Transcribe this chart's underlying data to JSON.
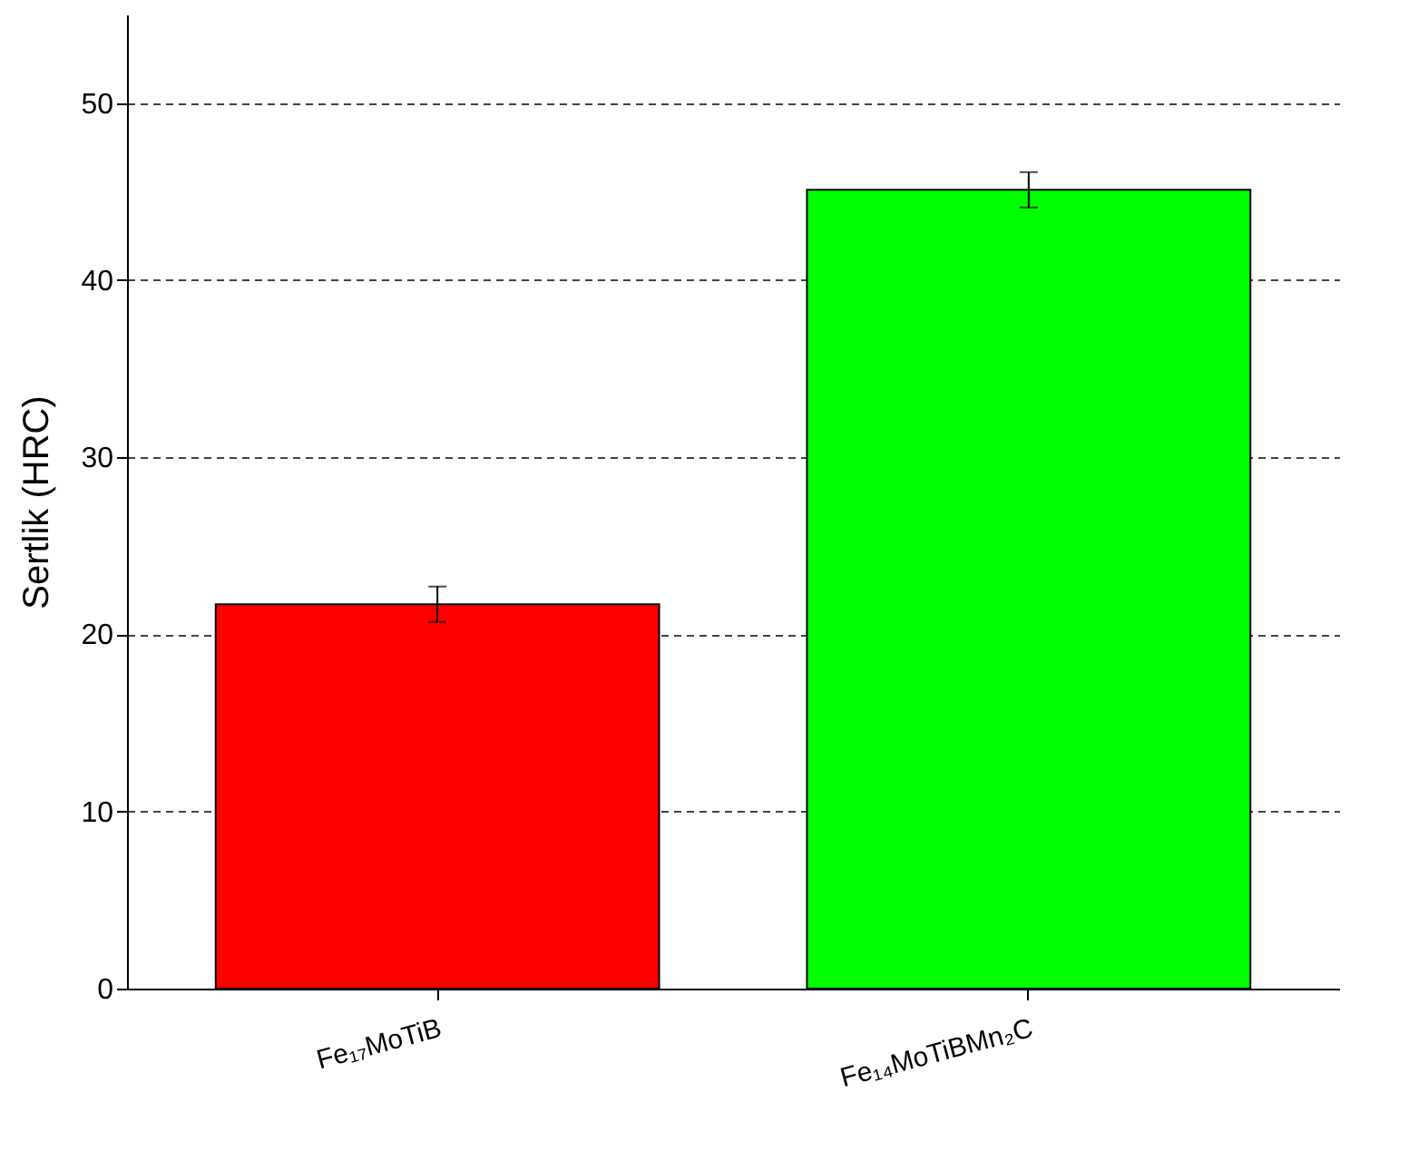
{
  "chart_data": {
    "type": "bar",
    "ylabel": "Sertlik (HRC)",
    "categories": [
      "Fe₁₇MoTiB",
      "Fe₁₄MoTiBMn₂C"
    ],
    "values": [
      21.7,
      45.1
    ],
    "errors": [
      1.0,
      1.0
    ],
    "colors": [
      "#ff0000",
      "#00ff00"
    ],
    "ylim": [
      0,
      55
    ],
    "yticks": [
      0,
      10,
      20,
      30,
      40,
      50
    ],
    "grid": "y"
  }
}
